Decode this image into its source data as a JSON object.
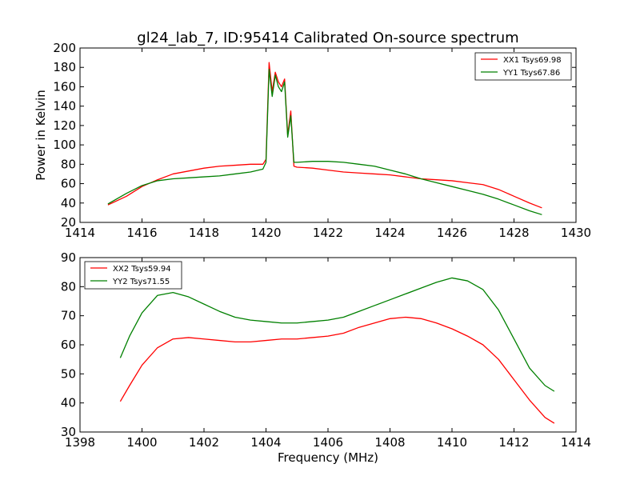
{
  "chart_data": [
    {
      "type": "line",
      "title": "gl24_lab_7, ID:95414 Calibrated On-source spectrum",
      "xlabel": "",
      "ylabel": "Power in Kelvin",
      "xlim": [
        1414,
        1430
      ],
      "ylim": [
        20,
        200
      ],
      "xticks": [
        1414,
        1416,
        1418,
        1420,
        1422,
        1424,
        1426,
        1428,
        1430
      ],
      "yticks": [
        20,
        40,
        60,
        80,
        100,
        120,
        140,
        160,
        180,
        200
      ],
      "grid": false,
      "legend": "top-right",
      "series": [
        {
          "name": "XX1 Tsys69.98",
          "color": "#ff0000",
          "x": [
            1414.9,
            1415.5,
            1416.0,
            1416.5,
            1417.0,
            1417.5,
            1418.0,
            1418.5,
            1419.0,
            1419.5,
            1419.9,
            1420.0,
            1420.1,
            1420.2,
            1420.3,
            1420.4,
            1420.5,
            1420.6,
            1420.7,
            1420.8,
            1420.9,
            1421.0,
            1421.5,
            1422.0,
            1422.5,
            1423.0,
            1423.5,
            1424.0,
            1424.5,
            1425.0,
            1425.5,
            1426.0,
            1426.5,
            1427.0,
            1427.5,
            1428.0,
            1428.5,
            1428.9
          ],
          "y": [
            38,
            47,
            57,
            64,
            70,
            73,
            76,
            78,
            79,
            80,
            80,
            85,
            185,
            155,
            175,
            165,
            160,
            168,
            110,
            135,
            78,
            77,
            76,
            74,
            72,
            71,
            70,
            69,
            67,
            65,
            64,
            63,
            61,
            59,
            54,
            47,
            40,
            35
          ]
        },
        {
          "name": "YY1 Tsys67.86",
          "color": "#008000",
          "x": [
            1414.9,
            1415.5,
            1416.0,
            1416.5,
            1417.0,
            1417.5,
            1418.0,
            1418.5,
            1419.0,
            1419.5,
            1419.9,
            1420.0,
            1420.1,
            1420.2,
            1420.3,
            1420.4,
            1420.5,
            1420.6,
            1420.7,
            1420.8,
            1420.9,
            1421.0,
            1421.5,
            1422.0,
            1422.5,
            1423.0,
            1423.5,
            1424.0,
            1424.5,
            1425.0,
            1425.5,
            1426.0,
            1426.5,
            1427.0,
            1427.5,
            1428.0,
            1428.5,
            1428.9
          ],
          "y": [
            39,
            50,
            58,
            63,
            65,
            66,
            67,
            68,
            70,
            72,
            75,
            82,
            178,
            150,
            172,
            160,
            155,
            165,
            108,
            130,
            82,
            82,
            83,
            83,
            82,
            80,
            78,
            74,
            70,
            65,
            61,
            57,
            53,
            49,
            44,
            38,
            32,
            28
          ]
        }
      ]
    },
    {
      "type": "line",
      "title": "",
      "xlabel": "Frequency (MHz)",
      "ylabel": "",
      "xlim": [
        1398,
        1414
      ],
      "ylim": [
        30,
        90
      ],
      "xticks": [
        1398,
        1400,
        1402,
        1404,
        1406,
        1408,
        1410,
        1412,
        1414
      ],
      "yticks": [
        30,
        40,
        50,
        60,
        70,
        80,
        90
      ],
      "grid": false,
      "legend": "top-left",
      "series": [
        {
          "name": "XX2 Tsys59.94",
          "color": "#ff0000",
          "x": [
            1399.3,
            1399.6,
            1400.0,
            1400.5,
            1401.0,
            1401.5,
            1402.0,
            1402.5,
            1403.0,
            1403.5,
            1404.0,
            1404.5,
            1405.0,
            1405.5,
            1406.0,
            1406.5,
            1407.0,
            1407.5,
            1408.0,
            1408.5,
            1409.0,
            1409.5,
            1410.0,
            1410.5,
            1411.0,
            1411.5,
            1412.0,
            1412.5,
            1413.0,
            1413.3
          ],
          "y": [
            40.5,
            46,
            53,
            59,
            62,
            62.5,
            62,
            61.5,
            61,
            61,
            61.5,
            62,
            62,
            62.5,
            63,
            64,
            66,
            67.5,
            69,
            69.5,
            69,
            67.5,
            65.5,
            63,
            60,
            55,
            48,
            41,
            35,
            33
          ]
        },
        {
          "name": "YY2 Tsys71.55",
          "color": "#008000",
          "x": [
            1399.3,
            1399.6,
            1400.0,
            1400.5,
            1401.0,
            1401.5,
            1402.0,
            1402.5,
            1403.0,
            1403.5,
            1404.0,
            1404.5,
            1405.0,
            1405.5,
            1406.0,
            1406.5,
            1407.0,
            1407.5,
            1408.0,
            1408.5,
            1409.0,
            1409.5,
            1410.0,
            1410.5,
            1411.0,
            1411.5,
            1412.0,
            1412.5,
            1413.0,
            1413.3
          ],
          "y": [
            55.5,
            63,
            71,
            77,
            78,
            76.5,
            74,
            71.5,
            69.5,
            68.5,
            68,
            67.5,
            67.5,
            68,
            68.5,
            69.5,
            71.5,
            73.5,
            75.5,
            77.5,
            79.5,
            81.5,
            83,
            82,
            79,
            72,
            62,
            52,
            46,
            44
          ]
        }
      ]
    }
  ]
}
